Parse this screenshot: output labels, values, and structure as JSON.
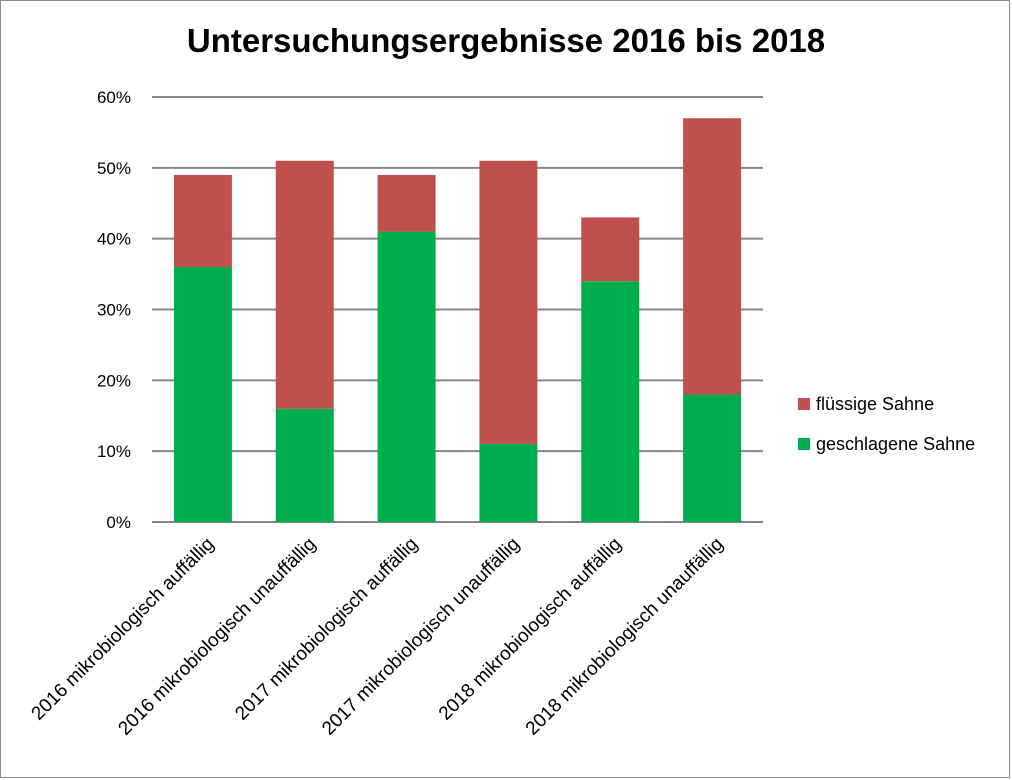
{
  "chart_data": {
    "type": "bar",
    "stacked": true,
    "title": "Untersuchungsergebnisse 2016 bis 2018",
    "xlabel": "",
    "ylabel": "",
    "ylim": [
      0,
      60
    ],
    "yticks": [
      0,
      10,
      20,
      30,
      40,
      50,
      60
    ],
    "ytick_labels": [
      "0%",
      "10%",
      "20%",
      "30%",
      "40%",
      "50%",
      "60%"
    ],
    "grid": true,
    "legend_position": "right",
    "categories": [
      "2016 mikrobiologisch auffällig",
      "2016 mikrobiologisch unauffällig",
      "2017 mikrobiologisch auffällig",
      "2017 mikrobiologisch unauffällig",
      "2018 mikrobiologisch auffällig",
      "2018 mikrobiologisch unauffällig"
    ],
    "series": [
      {
        "name": "geschlagene Sahne",
        "color": "#00ad4e",
        "values": [
          36,
          16,
          41,
          11,
          34,
          18
        ]
      },
      {
        "name": "flüssige Sahne",
        "color": "#c0504d",
        "values": [
          13,
          35,
          8,
          40,
          9,
          39
        ]
      }
    ],
    "legend_order": [
      "flüssige Sahne",
      "geschlagene Sahne"
    ]
  }
}
